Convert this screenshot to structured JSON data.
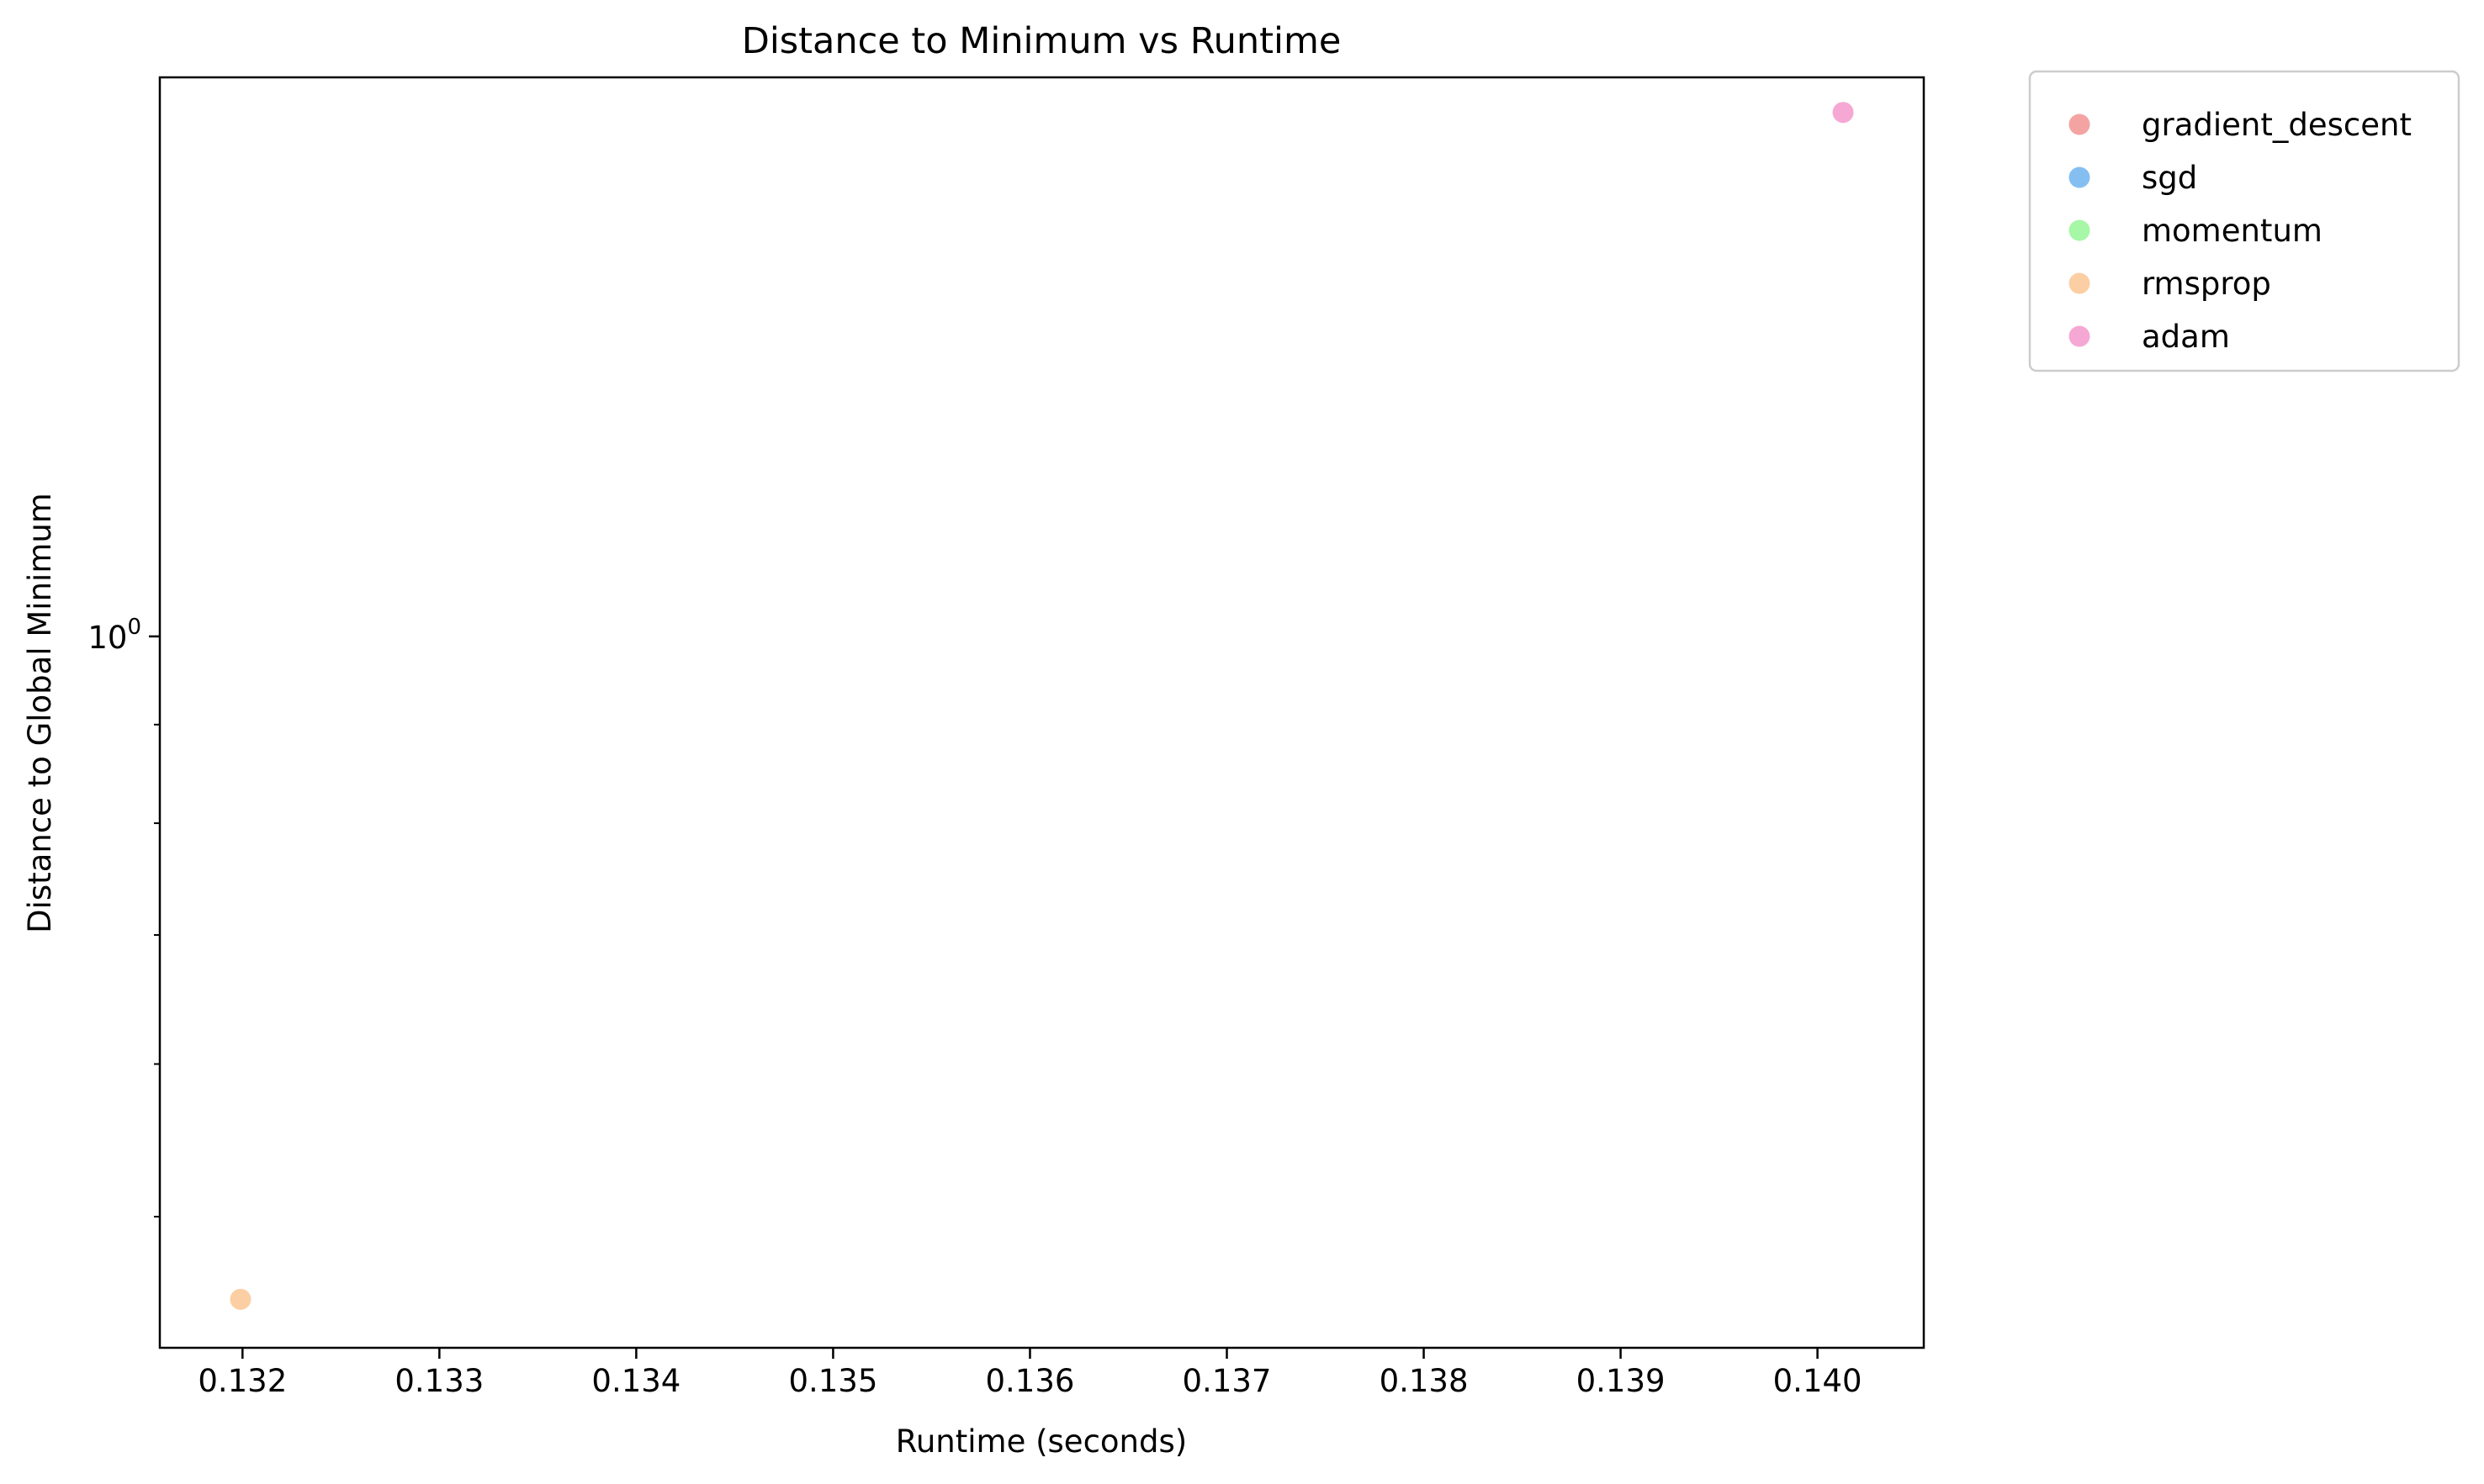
{
  "chart_data": {
    "type": "scatter",
    "title": "Distance to Minimum vs Runtime",
    "xlabel": "Runtime (seconds)",
    "ylabel": "Distance to Global Minimum",
    "xscale": "linear",
    "yscale": "log",
    "xlim": [
      0.13158,
      0.14054
    ],
    "ylim": [
      0.4275,
      1.95
    ],
    "xticks": [
      "0.132",
      "0.133",
      "0.134",
      "0.135",
      "0.136",
      "0.137",
      "0.138",
      "0.139",
      "0.140"
    ],
    "yticks": [
      {
        "value": 1,
        "base": "10",
        "exp": "0"
      }
    ],
    "yminor_ticks": [
      0.5,
      0.6,
      0.7,
      0.8,
      0.9,
      2.0,
      3.0,
      4.0,
      5.0,
      6.0,
      7.0,
      8.0,
      9.0
    ],
    "grid": false,
    "legend_position": "outside-top-right",
    "series": [
      {
        "name": "gradient_descent",
        "color": "#f4a3a3",
        "points": []
      },
      {
        "name": "sgd",
        "color": "#85bff2",
        "points": []
      },
      {
        "name": "momentum",
        "color": "#a6f7a6",
        "points": []
      },
      {
        "name": "rmsprop",
        "color": "#fbcfa3",
        "points": [
          {
            "x": 0.13199,
            "y": 0.453
          }
        ]
      },
      {
        "name": "adam",
        "color": "#f6a8d4",
        "points": [
          {
            "x": 0.14013,
            "y": 1.87
          }
        ]
      }
    ]
  }
}
